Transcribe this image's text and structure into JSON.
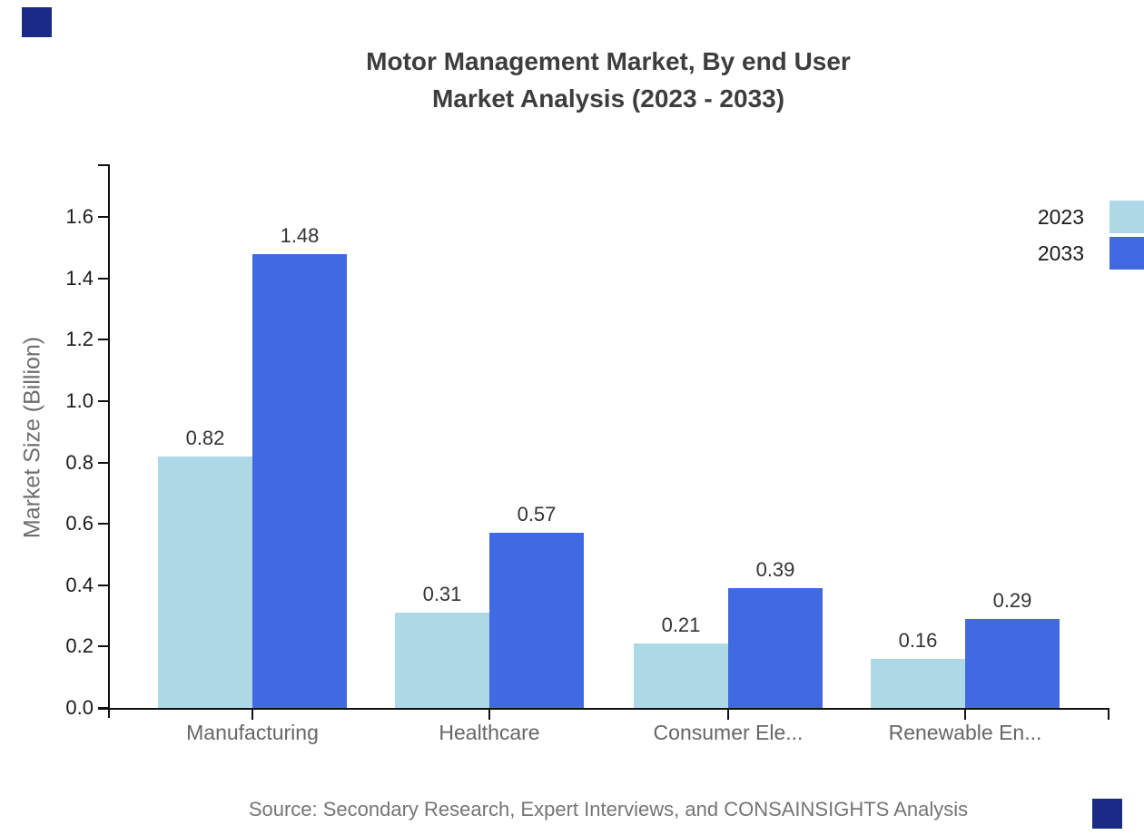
{
  "chart": {
    "title_line1": "Motor Management Market, By end User",
    "title_line2": "Market Analysis (2023 - 2033)",
    "source": "Source: Secondary Research, Expert Interviews, and CONSAINSIGHTS Analysis"
  },
  "chart_data": {
    "type": "bar",
    "title": "Motor Management Market, By end User Market Analysis (2023 - 2033)",
    "categories": [
      "Manufacturing",
      "Healthcare",
      "Consumer Ele...",
      "Renewable En..."
    ],
    "series": [
      {
        "name": "2023",
        "color": "#ADD8E6",
        "values": [
          0.82,
          0.31,
          0.21,
          0.16
        ]
      },
      {
        "name": "2033",
        "color": "#4169E1",
        "values": [
          1.48,
          0.57,
          0.39,
          0.29
        ]
      }
    ],
    "xlabel": "",
    "ylabel": "Market Size (Billion)",
    "ylim": [
      0,
      1.6
    ],
    "ytick_step": 0.2,
    "yticks": [
      "0.0",
      "0.2",
      "0.4",
      "0.6",
      "0.8",
      "1.0",
      "1.2",
      "1.4",
      "1.6"
    ],
    "grid": false,
    "legend_position": "top-right",
    "value_labels": true,
    "value_label_format": "2-decimals"
  },
  "colors": {
    "series_2023": "#ADD8E6",
    "series_2033": "#4169E1",
    "brand_corner": "#1B2A87",
    "axis": "#111111",
    "title_text": "#3D3D3D",
    "tick_label": "#1A1A1A",
    "category_label": "#666666",
    "value_label": "#333333",
    "axis_title": "#6E6E6E",
    "source_text": "#757575"
  }
}
